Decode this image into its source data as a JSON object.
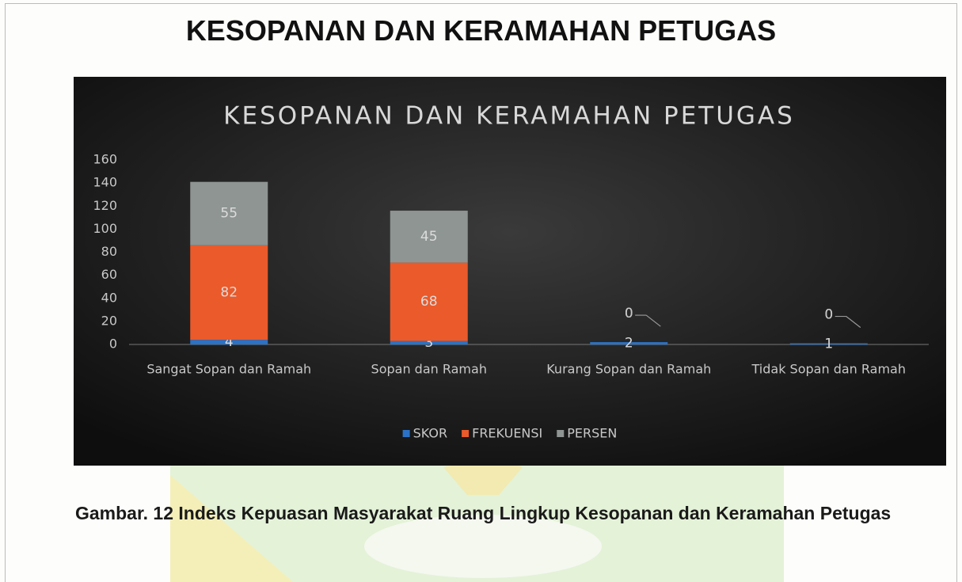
{
  "heading": "KESOPANAN DAN KERAMAHAN PETUGAS",
  "chart_data": {
    "type": "stacked_bar",
    "title": "KESOPANAN DAN KERAMAHAN PETUGAS",
    "categories": [
      "Sangat Sopan dan Ramah",
      "Sopan dan Ramah",
      "Kurang Sopan dan Ramah",
      "Tidak Sopan dan Ramah"
    ],
    "series": [
      {
        "name": "SKOR",
        "color": "#2a72c8",
        "values": [
          4,
          3,
          2,
          1
        ]
      },
      {
        "name": "FREKUENSI",
        "color": "#ea5a2b",
        "values": [
          82,
          68,
          0,
          0
        ]
      },
      {
        "name": "PERSEN",
        "color": "#8e9592",
        "values": [
          55,
          45,
          0,
          0
        ]
      }
    ],
    "ylim": [
      0,
      160
    ],
    "yticks": [
      0,
      20,
      40,
      60,
      80,
      100,
      120,
      140,
      160
    ],
    "grid": false,
    "legend": "bottom"
  },
  "caption": "Gambar. 12 Indeks Kepuasan Masyarakat Ruang Lingkup Kesopanan dan Keramahan Petugas"
}
